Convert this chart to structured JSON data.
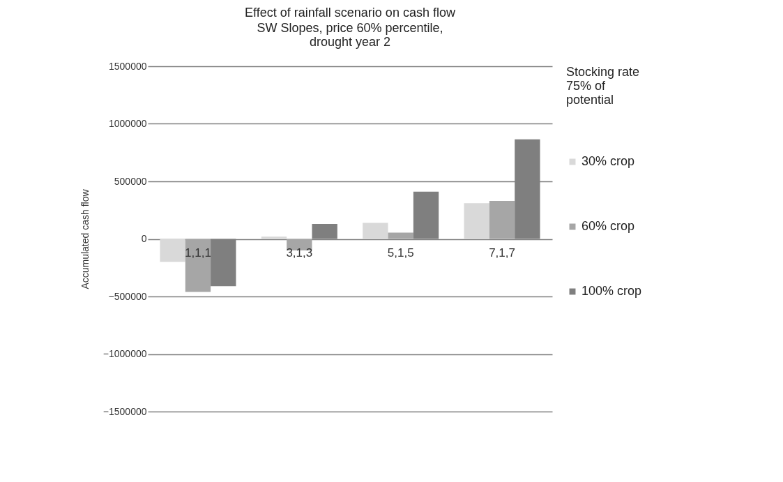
{
  "chart_data": {
    "type": "bar",
    "title": "Effect of rainfall scenario on cash flow",
    "subtitle": "SW Slopes, price 60% percentile, drought year 2",
    "ylabel": "Accumulated cash flow",
    "legend_title": "Stocking rate 75% of potential",
    "categories": [
      "1,1,1",
      "3,1,3",
      "5,1,5",
      "7,1,7"
    ],
    "series": [
      {
        "name": "30% crop",
        "color": "#d9d9d9",
        "values": [
          -200000,
          20000,
          140000,
          310000
        ]
      },
      {
        "name": "60% crop",
        "color": "#a6a6a6",
        "values": [
          -460000,
          -100000,
          55000,
          330000
        ]
      },
      {
        "name": "100% crop",
        "color": "#7f7f7f",
        "values": [
          -410000,
          130000,
          410000,
          865000
        ]
      }
    ],
    "ylim": [
      -1500000,
      1500000
    ],
    "yticks": [
      -1500000,
      -1000000,
      -500000,
      0,
      500000,
      1000000,
      1500000
    ],
    "grid": "y",
    "legend": "right"
  }
}
